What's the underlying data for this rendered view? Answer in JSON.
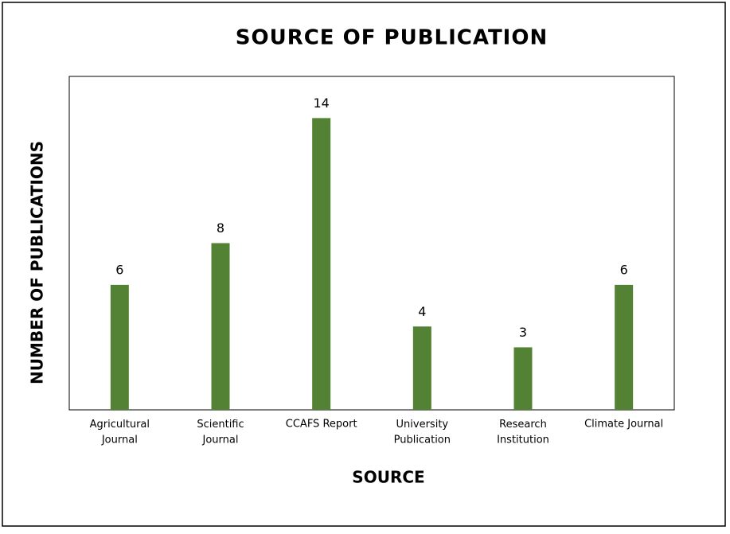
{
  "chart_data": {
    "type": "bar",
    "title": "SOURCE OF PUBLICATION",
    "x_label": "SOURCE",
    "y_label": "NUMBER OF PUBLICATIONS",
    "categories": [
      "Agricultural\nJournal",
      "Scientific\nJournal",
      "CCAFS Report",
      "University\nPublication",
      "Research\nInstitution",
      "Climate Journal"
    ],
    "values": [
      6,
      8,
      14,
      4,
      3,
      6
    ],
    "color": "#548235",
    "ylim": [
      0,
      16
    ]
  }
}
